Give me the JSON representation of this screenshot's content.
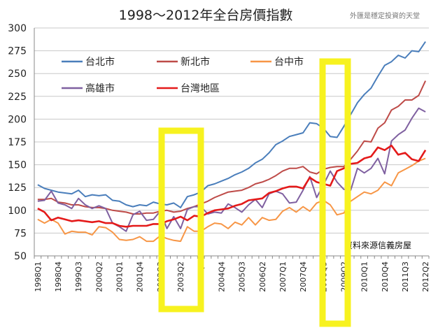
{
  "chart_data": {
    "type": "line",
    "title": "1998～2012年全台房價指數",
    "watermark": "外匯是穩定投資的天堂",
    "source_note": "資料來源信義房屋",
    "ylim": [
      50,
      300
    ],
    "yticks": [
      "50",
      "75",
      "100",
      "125",
      "150",
      "175",
      "200",
      "225",
      "250",
      "275",
      "300"
    ],
    "grid": "horizontal",
    "legend_position": "top-left",
    "categories": [
      "1998Q1",
      "1998Q2",
      "1998Q3",
      "1998Q4",
      "1999Q1",
      "1999Q2",
      "1999Q3",
      "1999Q4",
      "2000Q1",
      "2000Q2",
      "2000Q3",
      "2000Q4",
      "2001Q1",
      "2001Q2",
      "2001Q3",
      "2001Q4",
      "2002Q1",
      "2002Q2",
      "2002Q3",
      "2002Q4",
      "2003Q1",
      "2003Q2",
      "2003Q3",
      "2003Q4",
      "2004Q1",
      "2004Q2",
      "2004Q3",
      "2004Q4",
      "2005Q1",
      "2005Q2",
      "2005Q3",
      "2005Q4",
      "2006Q1",
      "2006Q2",
      "2006Q3",
      "2006Q4",
      "2007Q1",
      "2007Q2",
      "2007Q3",
      "2007Q4",
      "2008Q1",
      "2008Q2",
      "2008Q3",
      "2008Q4",
      "2009Q1",
      "2009Q2",
      "2009Q3",
      "2009Q4",
      "2010Q1",
      "2010Q2",
      "2010Q3",
      "2010Q4",
      "2011Q1",
      "2011Q2",
      "2011Q3",
      "2011Q4",
      "2012Q1",
      "2012Q2"
    ],
    "xtick_labels": [
      "1998Q1",
      "1998Q4",
      "1999Q3",
      "2000Q2",
      "2001Q1",
      "2001Q4",
      "2002Q3",
      "2003Q2",
      "2004Q1",
      "2004Q4",
      "2005Q3",
      "2006Q2",
      "2007Q1",
      "2007Q4",
      "2008Q3",
      "2009Q2",
      "2010Q1",
      "2010Q4",
      "2011Q3",
      "2012Q2"
    ],
    "series": [
      {
        "name": "台北市",
        "color": "#4a7ebb",
        "values": [
          128,
          124,
          122,
          120,
          119,
          118,
          122,
          115,
          117,
          116,
          117,
          111,
          110,
          106,
          104,
          106,
          105,
          109,
          107,
          106,
          108,
          103,
          115,
          117,
          120,
          127,
          129,
          132,
          135,
          139,
          142,
          146,
          152,
          156,
          163,
          172,
          176,
          181,
          183,
          185,
          196,
          195,
          190,
          181,
          180,
          192,
          205,
          218,
          227,
          234,
          247,
          259,
          263,
          270,
          267,
          275,
          274,
          285
        ]
      },
      {
        "name": "新北市",
        "color": "#be4b48",
        "values": [
          112,
          112,
          113,
          109,
          108,
          106,
          106,
          104,
          103,
          103,
          102,
          100,
          99,
          98,
          96,
          96,
          97,
          97,
          99,
          100,
          98,
          99,
          102,
          104,
          107,
          110,
          114,
          117,
          120,
          121,
          122,
          125,
          129,
          131,
          134,
          138,
          143,
          146,
          146,
          148,
          142,
          140,
          145,
          147,
          148,
          148,
          156,
          165,
          176,
          175,
          190,
          196,
          210,
          214,
          221,
          221,
          226,
          242
        ]
      },
      {
        "name": "台中市",
        "color": "#f79646",
        "values": [
          90,
          86,
          90,
          86,
          74,
          77,
          76,
          76,
          73,
          82,
          81,
          76,
          68,
          67,
          68,
          71,
          66,
          66,
          72,
          69,
          67,
          66,
          82,
          77,
          77,
          82,
          86,
          85,
          80,
          87,
          84,
          92,
          84,
          92,
          89,
          90,
          99,
          103,
          98,
          104,
          99,
          108,
          111,
          106,
          95,
          97,
          110,
          115,
          120,
          118,
          122,
          131,
          127,
          141,
          145,
          149,
          154,
          157
        ]
      },
      {
        "name": "高雄市",
        "color": "#7f60a0",
        "values": [
          110,
          111,
          121,
          108,
          106,
          102,
          113,
          106,
          102,
          105,
          102,
          86,
          82,
          77,
          95,
          99,
          89,
          90,
          99,
          80,
          93,
          80,
          101,
          104,
          104,
          96,
          98,
          97,
          107,
          103,
          98,
          106,
          112,
          103,
          118,
          121,
          118,
          108,
          109,
          122,
          137,
          114,
          128,
          143,
          131,
          123,
          122,
          146,
          141,
          146,
          157,
          140,
          176,
          183,
          188,
          201,
          212,
          208
        ]
      },
      {
        "name": "台灣地區",
        "color": "#e41a1a",
        "values": [
          102,
          98,
          89,
          92,
          90,
          88,
          89,
          88,
          87,
          88,
          86,
          86,
          83,
          82,
          83,
          83,
          83,
          85,
          85,
          88,
          90,
          93,
          89,
          94,
          93,
          97,
          100,
          101,
          102,
          105,
          107,
          111,
          112,
          113,
          119,
          121,
          124,
          126,
          126,
          124,
          136,
          131,
          129,
          127,
          143,
          146,
          151,
          152,
          157,
          159,
          169,
          166,
          171,
          161,
          163,
          156,
          154,
          166
        ]
      }
    ]
  }
}
